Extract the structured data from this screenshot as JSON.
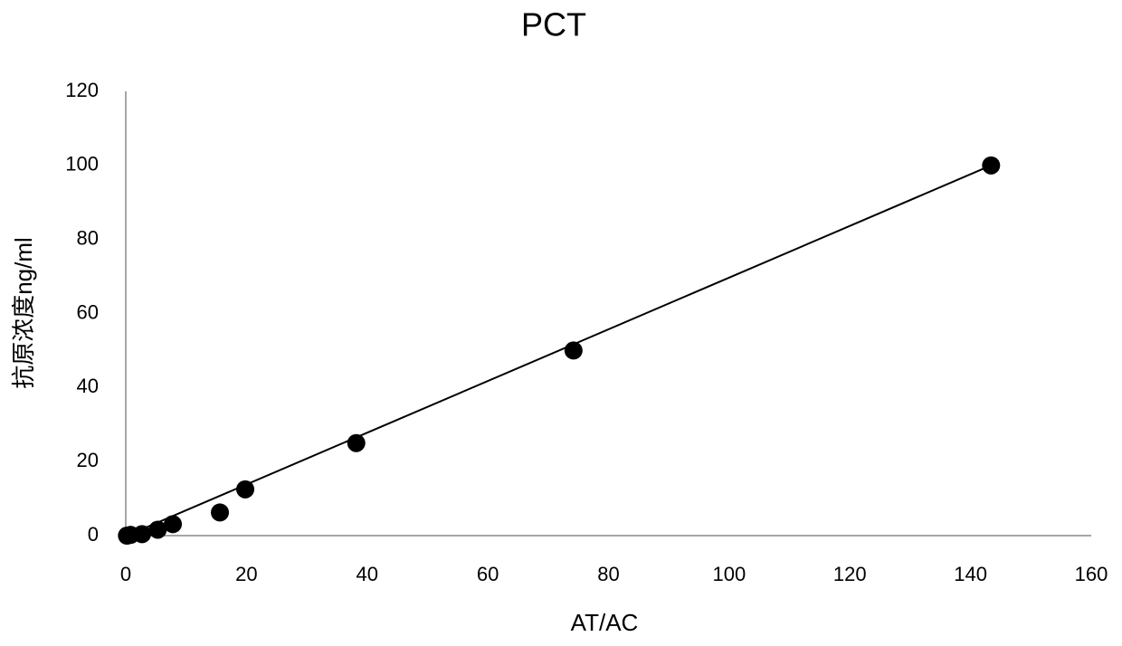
{
  "chart_data": {
    "type": "scatter",
    "title": "PCT",
    "x_label": "AT/AC",
    "y_label": "抗原浓度ng/ml",
    "series": [
      {
        "x": [
          0.2,
          0.8,
          2.7,
          5.3,
          7.8,
          15.6,
          19.8,
          38.2,
          74.2,
          143.4
        ],
        "values": [
          0,
          0.2,
          0.4,
          1.6,
          3.1,
          6.25,
          12.5,
          25,
          50,
          100
        ],
        "color": "#000000"
      }
    ],
    "trendline": {
      "x": [
        0.2,
        143.4
      ],
      "values": [
        0,
        100
      ],
      "color": "#000000"
    },
    "xlim": [
      0,
      160
    ],
    "xticks": [
      0,
      20,
      40,
      60,
      80,
      100,
      120,
      140,
      160
    ],
    "ylim": [
      0,
      120
    ],
    "yticks": [
      0,
      20,
      40,
      60,
      80,
      100,
      120
    ],
    "grid": false
  }
}
